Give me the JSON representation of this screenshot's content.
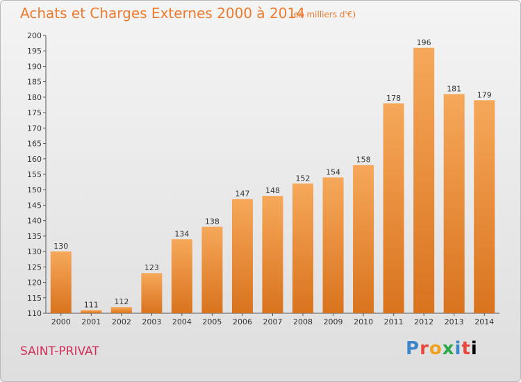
{
  "header": {
    "title": "Achats et Charges Externes 2000 à 2014",
    "unit": "(en milliers d'€)"
  },
  "footer": {
    "city": "SAINT-PRIVAT",
    "brand_letters": [
      "P",
      "r",
      "o",
      "x",
      "i",
      "t",
      "i"
    ]
  },
  "colors": {
    "bar_top": "#f6a85a",
    "bar_bottom": "#d9731e",
    "title": "#ed7a2d",
    "city": "#d0305a"
  },
  "chart_data": {
    "type": "bar",
    "title": "Achats et Charges Externes 2000 à 2014",
    "categories": [
      "2000",
      "2001",
      "2002",
      "2003",
      "2004",
      "2005",
      "2006",
      "2007",
      "2008",
      "2009",
      "2010",
      "2011",
      "2012",
      "2013",
      "2014"
    ],
    "values": [
      130,
      111,
      112,
      123,
      134,
      138,
      147,
      148,
      152,
      154,
      158,
      178,
      196,
      181,
      179
    ],
    "ylim": [
      110,
      200
    ],
    "yticks": [
      110,
      115,
      120,
      125,
      130,
      135,
      140,
      145,
      150,
      155,
      160,
      165,
      170,
      175,
      180,
      185,
      190,
      195,
      200
    ],
    "grid": false,
    "legend": "none"
  }
}
